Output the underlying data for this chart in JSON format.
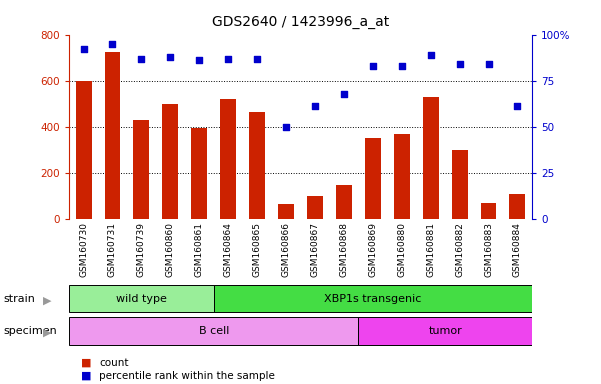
{
  "title": "GDS2640 / 1423996_a_at",
  "samples": [
    "GSM160730",
    "GSM160731",
    "GSM160739",
    "GSM160860",
    "GSM160861",
    "GSM160864",
    "GSM160865",
    "GSM160866",
    "GSM160867",
    "GSM160868",
    "GSM160869",
    "GSM160880",
    "GSM160881",
    "GSM160882",
    "GSM160883",
    "GSM160884"
  ],
  "counts": [
    600,
    725,
    430,
    500,
    395,
    520,
    465,
    65,
    100,
    148,
    350,
    370,
    530,
    300,
    68,
    108
  ],
  "percentiles": [
    92,
    95,
    87,
    88,
    86,
    87,
    87,
    50,
    61,
    68,
    83,
    83,
    89,
    84,
    84,
    61
  ],
  "bar_color": "#cc2200",
  "scatter_color": "#0000cc",
  "ylim_left": [
    0,
    800
  ],
  "ylim_right": [
    0,
    100
  ],
  "yticks_left": [
    0,
    200,
    400,
    600,
    800
  ],
  "yticks_right": [
    0,
    25,
    50,
    75,
    100
  ],
  "yticklabels_right": [
    "0",
    "25",
    "50",
    "75",
    "100%"
  ],
  "strain_groups": [
    {
      "label": "wild type",
      "start": 0,
      "end": 5,
      "color": "#99ee99"
    },
    {
      "label": "XBP1s transgenic",
      "start": 5,
      "end": 16,
      "color": "#44dd44"
    }
  ],
  "specimen_groups": [
    {
      "label": "B cell",
      "start": 0,
      "end": 10,
      "color": "#ee99ee"
    },
    {
      "label": "tumor",
      "start": 10,
      "end": 16,
      "color": "#ee44ee"
    }
  ],
  "legend_items": [
    {
      "color": "#cc2200",
      "label": "count"
    },
    {
      "color": "#0000cc",
      "label": "percentile rank within the sample"
    }
  ],
  "bg_color": "#ffffff",
  "tick_bg_color": "#cccccc",
  "strain_label": "strain",
  "specimen_label": "specimen",
  "n_samples": 16,
  "fig_width": 6.01,
  "fig_height": 3.84,
  "dpi": 100
}
